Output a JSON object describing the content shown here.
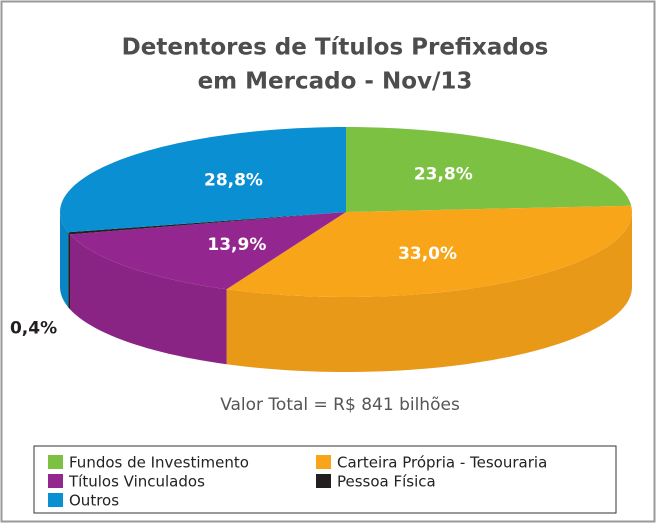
{
  "chart_data": {
    "type": "pie",
    "title": [
      "Detentores de Títulos Prefixados",
      "em Mercado - Nov/13"
    ],
    "categories": [
      "Fundos de Investimento",
      "Carteira Própria - Tesouraria",
      "Títulos Vinculados",
      "Pessoa Física",
      "Outros"
    ],
    "values": [
      23.8,
      33.0,
      13.9,
      0.4,
      28.8
    ],
    "value_labels": [
      "23,8%",
      "33,0%",
      "13,9%",
      "0,4%",
      "28,8%"
    ],
    "colors": [
      "#7dc142",
      "#f9a51a",
      "#93278f",
      "#231f20",
      "#0b8fd3"
    ],
    "annotation": "Valor Total = R$ 841 bilhões",
    "legend": "bottom"
  }
}
